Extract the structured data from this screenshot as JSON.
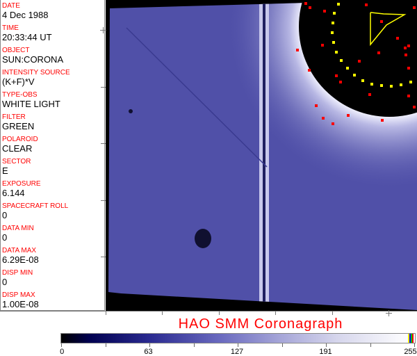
{
  "info_panel": [
    {
      "label": "DATE",
      "value": "4 Dec 1988"
    },
    {
      "label": "TIME",
      "value": "20:33:44 UT"
    },
    {
      "label": "OBJECT",
      "value": "SUN:CORONA"
    },
    {
      "label": "INTENSITY SOURCE",
      "value": "(K+F)*V"
    },
    {
      "label": "TYPE-OBS",
      "value": "WHITE LIGHT"
    },
    {
      "label": "FILTER",
      "value": "GREEN"
    },
    {
      "label": "POLAROID",
      "value": "CLEAR"
    },
    {
      "label": "SECTOR",
      "value": "E"
    },
    {
      "label": "EXPOSURE",
      "value": "6.144"
    },
    {
      "label": "SPACECRAFT ROLL",
      "value": "0"
    },
    {
      "label": "DATA MIN",
      "value": "0"
    },
    {
      "label": "DATA MAX",
      "value": "6.29E-08"
    },
    {
      "label": "DISP MIN",
      "value": "0"
    },
    {
      "label": "DISP MAX",
      "value": "1.00E-08"
    }
  ],
  "title": "HAO  SMM  Coronagraph",
  "colorbar": {
    "ticks": [
      "0",
      "63",
      "127",
      "191",
      "255"
    ],
    "range": [
      0,
      255
    ],
    "colors": {
      "low": "#000000",
      "mid": "#6a6abf",
      "high": "#ffffff",
      "label": "#ff0000"
    }
  }
}
